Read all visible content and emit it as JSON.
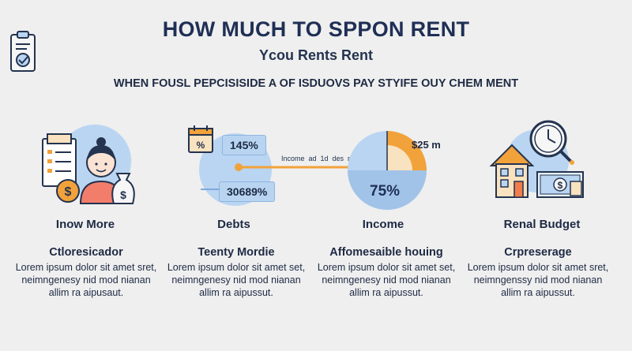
{
  "header": {
    "title": "HOW MUCH TO SPPON RENT",
    "subtitle": "Ycou Rents Rent",
    "tagline": "WHEN FOUSL PEPCISISIDE A OF ISDUOVS PAY STYIFE OUY CHEM MENT"
  },
  "icons": {
    "header": "clipboard-check-icon",
    "col1": "person-with-money-icon",
    "col2": "calendar-icon",
    "col4": [
      "house-icon",
      "clock-icon",
      "banknote-icon"
    ]
  },
  "badges": {
    "top": "145%",
    "bottom": "30689%"
  },
  "slider_caption": "Income  ad  1d  des  nune",
  "pie": {
    "amount_label": "$25 m",
    "percent_label": "75%",
    "highlight_fraction": 0.25
  },
  "columns": [
    {
      "label": "Inow More",
      "heading": "Ctloresicador",
      "body": "Lorem ipsum dolor sit amet sret, neimngenesy nid mod nianan allim ra aipusaut."
    },
    {
      "label": "Debts",
      "heading": "Teenty Mordie",
      "body": "Lorem ipsum dolor sit amet set, neimngenesy nid mod nianan allim ra aipussut."
    },
    {
      "label": "Income",
      "heading": "Affomesaible houing",
      "body": "Lorem ipsum dolor sit amet set, neimngenesy nid mod nianan allim ra aipussut."
    },
    {
      "label": "Renal Budget",
      "heading": "Crpreserage",
      "body": "Lorem ipsum dolor sit amet sret, neimngenssy nid mod nianan allim ra aipussut."
    }
  ],
  "colors": {
    "navy": "#1f2f55",
    "light_blue": "#b9d5f2",
    "mid_blue": "#7fa8dc",
    "orange": "#f2a23a",
    "cream": "#f8e2bf"
  }
}
